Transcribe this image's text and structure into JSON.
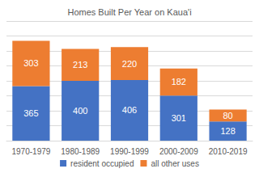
{
  "chart_data": {
    "type": "bar",
    "title": "Homes Built Per Year on Kaua'i",
    "categories": [
      "1970-1979",
      "1980-1989",
      "1990-1999",
      "2000-2009",
      "2010-2019"
    ],
    "series": [
      {
        "name": "resident occupied",
        "color": "#4472c4",
        "values": [
          365,
          400,
          406,
          301,
          128
        ]
      },
      {
        "name": "all other uses",
        "color": "#ed7d31",
        "values": [
          303,
          213,
          220,
          182,
          80
        ]
      }
    ],
    "ylim": [
      0,
      800
    ],
    "yticks": [
      0,
      100,
      200,
      300,
      400,
      500,
      600,
      700,
      800
    ],
    "stacked": true,
    "data_labels": true,
    "grid": true,
    "legend": "bottom",
    "tick_labels": "x"
  }
}
